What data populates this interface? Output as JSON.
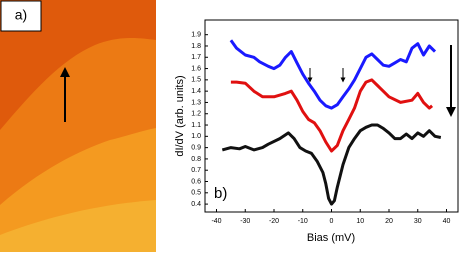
{
  "panel_a": {
    "label": "a)"
  },
  "chart_data": {
    "type": "line",
    "label": "b)",
    "xlabel": "Bias (mV)",
    "ylabel": "dI/dV (arb. units)",
    "xlim": [
      -44,
      44
    ],
    "ylim": [
      0.33,
      2.03
    ],
    "xticks": [
      -40,
      -30,
      -20,
      -10,
      0,
      10,
      20,
      30,
      40
    ],
    "yticks": [
      0.4,
      0.5,
      0.6,
      0.7,
      0.8,
      0.9,
      {
        "value": 1,
        "label": "1.0"
      },
      1.1,
      1.2,
      1.3,
      1.4,
      1.5,
      1.6,
      1.7,
      1.8,
      1.9
    ],
    "series": [
      {
        "color": "#1a1aff",
        "x": [
          -35,
          -33,
          -30,
          -27,
          -25,
          -22,
          -20,
          -18,
          -16,
          -14,
          -12,
          -10,
          -8,
          -6,
          -4,
          -2,
          0,
          2,
          4,
          6,
          8,
          10,
          12,
          14,
          16,
          18,
          20,
          22,
          24,
          26,
          28,
          30,
          32,
          34,
          36
        ],
        "values": [
          1.85,
          1.78,
          1.72,
          1.7,
          1.66,
          1.62,
          1.6,
          1.63,
          1.7,
          1.75,
          1.65,
          1.55,
          1.47,
          1.4,
          1.32,
          1.27,
          1.25,
          1.28,
          1.35,
          1.42,
          1.5,
          1.6,
          1.7,
          1.73,
          1.68,
          1.63,
          1.62,
          1.65,
          1.68,
          1.66,
          1.78,
          1.82,
          1.72,
          1.8,
          1.75
        ]
      },
      {
        "color": "#e01010",
        "x": [
          -35,
          -33,
          -30,
          -27,
          -24,
          -20,
          -16,
          -14,
          -12,
          -10,
          -8,
          -6,
          -4,
          -2,
          0,
          2,
          4,
          6,
          8,
          10,
          12,
          14,
          16,
          18,
          20,
          24,
          28,
          30,
          32,
          34,
          35
        ],
        "values": [
          1.48,
          1.48,
          1.47,
          1.4,
          1.35,
          1.35,
          1.38,
          1.4,
          1.32,
          1.22,
          1.15,
          1.12,
          1.05,
          0.95,
          0.87,
          0.92,
          1.05,
          1.15,
          1.25,
          1.4,
          1.48,
          1.5,
          1.45,
          1.4,
          1.35,
          1.3,
          1.32,
          1.38,
          1.3,
          1.25,
          1.27
        ]
      },
      {
        "color": "#111111",
        "x": [
          -38,
          -35,
          -32,
          -30,
          -27,
          -24,
          -22,
          -18,
          -15,
          -13,
          -11,
          -9,
          -7,
          -5,
          -3,
          -2,
          -1,
          0,
          1,
          2,
          4,
          6,
          8,
          10,
          12,
          14,
          16,
          18,
          20,
          22,
          24,
          26,
          28,
          30,
          32,
          34,
          36,
          38
        ],
        "values": [
          0.88,
          0.9,
          0.89,
          0.91,
          0.88,
          0.9,
          0.93,
          0.98,
          1.03,
          0.98,
          0.9,
          0.87,
          0.85,
          0.78,
          0.68,
          0.58,
          0.45,
          0.4,
          0.43,
          0.55,
          0.75,
          0.9,
          0.98,
          1.05,
          1.08,
          1.1,
          1.1,
          1.07,
          1.03,
          0.98,
          0.98,
          1.02,
          0.98,
          1.03,
          1,
          1.05,
          1,
          0.99
        ]
      }
    ]
  }
}
